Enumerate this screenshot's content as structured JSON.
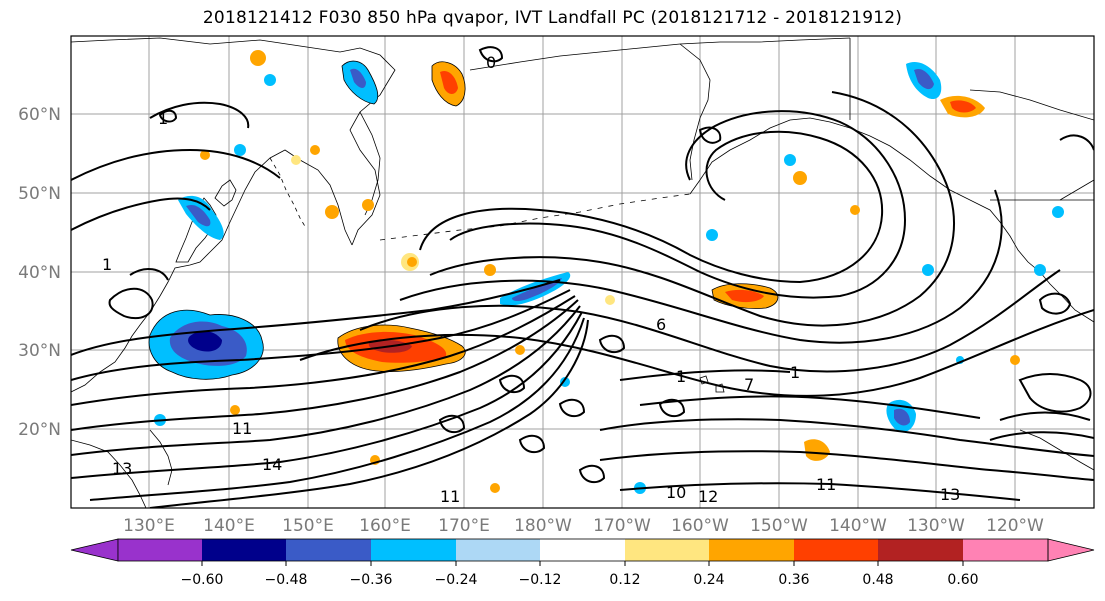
{
  "title": "2018121412 F030 850 hPa qvapor, IVT Landfall PC (2018121712 - 2018121912)",
  "map": {
    "lat_labels": [
      "60°N",
      "50°N",
      "40°N",
      "30°N",
      "20°N"
    ],
    "lon_labels": [
      "130°E",
      "140°E",
      "150°E",
      "160°E",
      "170°E",
      "180°W",
      "170°W",
      "160°W",
      "150°W",
      "140°W",
      "130°W",
      "120°W"
    ],
    "contour_labels": [
      "1",
      "1",
      "1",
      "11",
      "13",
      "14",
      "1",
      "7",
      "0",
      "6",
      "11",
      "13",
      "12",
      "10",
      "11"
    ]
  },
  "colorbar": {
    "colors": [
      "#9932cc",
      "#00008b",
      "#3a5bc7",
      "#00bfff",
      "#add8f5",
      "#ffffff",
      "#ffe680",
      "#ffa500",
      "#ff4000",
      "#b22222",
      "#ff82b4",
      "#ff82b4"
    ],
    "labels": [
      "−0.60",
      "−0.48",
      "−0.36",
      "−0.24",
      "−0.12",
      "0.12",
      "0.24",
      "0.36",
      "0.48",
      "0.60"
    ]
  }
}
